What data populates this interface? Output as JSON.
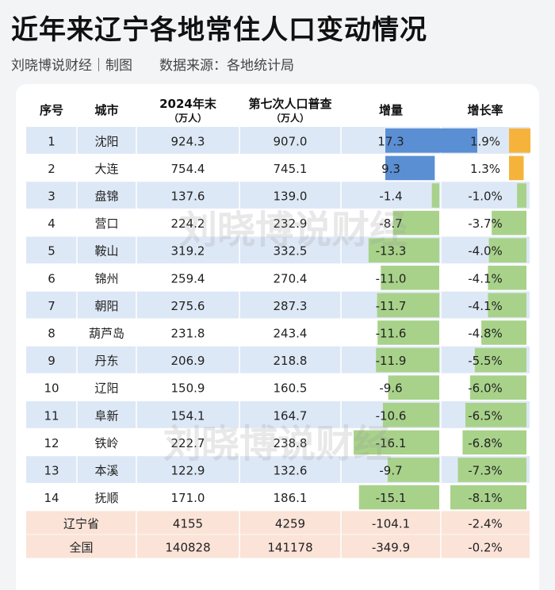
{
  "title": "近年来辽宁各地常住人口变动情况",
  "subtitle": "刘晓博说财经｜制图　　数据来源：各地统计局",
  "watermark": "刘晓博说财经",
  "colors": {
    "header_bg": "#ffffff",
    "row_blue": "#dde8f6",
    "row_white": "#ffffff",
    "row_pink": "#fbe3d8",
    "bar_positive": "#5b8fd4",
    "bar_negative": "#a8d28a",
    "rate_positive": "#f6b33b",
    "rate_negative": "#a8d28a"
  },
  "chart_data": {
    "type": "table",
    "columns": [
      {
        "key": "rank",
        "label": "序号",
        "sub": ""
      },
      {
        "key": "city",
        "label": "城市",
        "sub": ""
      },
      {
        "key": "pop2024",
        "label": "2024年末",
        "sub": "（万人）"
      },
      {
        "key": "census7",
        "label": "第七次人口普查",
        "sub": "（万人）"
      },
      {
        "key": "change",
        "label": "增量",
        "sub": ""
      },
      {
        "key": "rate",
        "label": "增长率",
        "sub": ""
      }
    ],
    "rows": [
      {
        "rank": "1",
        "city": "沈阳",
        "pop2024": "924.3",
        "census7": "907.0",
        "change": "17.3",
        "rate": "1.9%",
        "change_value": 17.3,
        "rate_value": 1.9
      },
      {
        "rank": "2",
        "city": "大连",
        "pop2024": "754.4",
        "census7": "745.1",
        "change": "9.3",
        "rate": "1.3%",
        "change_value": 9.3,
        "rate_value": 1.3
      },
      {
        "rank": "3",
        "city": "盘锦",
        "pop2024": "137.6",
        "census7": "139.0",
        "change": "-1.4",
        "rate": "-1.0%",
        "change_value": -1.4,
        "rate_value": -1.0
      },
      {
        "rank": "4",
        "city": "营口",
        "pop2024": "224.2",
        "census7": "232.9",
        "change": "-8.7",
        "rate": "-3.7%",
        "change_value": -8.7,
        "rate_value": -3.7
      },
      {
        "rank": "5",
        "city": "鞍山",
        "pop2024": "319.2",
        "census7": "332.5",
        "change": "-13.3",
        "rate": "-4.0%",
        "change_value": -13.3,
        "rate_value": -4.0
      },
      {
        "rank": "6",
        "city": "锦州",
        "pop2024": "259.4",
        "census7": "270.4",
        "change": "-11.0",
        "rate": "-4.1%",
        "change_value": -11.0,
        "rate_value": -4.1
      },
      {
        "rank": "7",
        "city": "朝阳",
        "pop2024": "275.6",
        "census7": "287.3",
        "change": "-11.7",
        "rate": "-4.1%",
        "change_value": -11.7,
        "rate_value": -4.1
      },
      {
        "rank": "8",
        "city": "葫芦岛",
        "pop2024": "231.8",
        "census7": "243.4",
        "change": "-11.6",
        "rate": "-4.8%",
        "change_value": -11.6,
        "rate_value": -4.8
      },
      {
        "rank": "9",
        "city": "丹东",
        "pop2024": "206.9",
        "census7": "218.8",
        "change": "-11.9",
        "rate": "-5.5%",
        "change_value": -11.9,
        "rate_value": -5.5
      },
      {
        "rank": "10",
        "city": "辽阳",
        "pop2024": "150.9",
        "census7": "160.5",
        "change": "-9.6",
        "rate": "-6.0%",
        "change_value": -9.6,
        "rate_value": -6.0
      },
      {
        "rank": "11",
        "city": "阜新",
        "pop2024": "154.1",
        "census7": "164.7",
        "change": "-10.6",
        "rate": "-6.5%",
        "change_value": -10.6,
        "rate_value": -6.5
      },
      {
        "rank": "12",
        "city": "铁岭",
        "pop2024": "222.7",
        "census7": "238.8",
        "change": "-16.1",
        "rate": "-6.8%",
        "change_value": -16.1,
        "rate_value": -6.8
      },
      {
        "rank": "13",
        "city": "本溪",
        "pop2024": "122.9",
        "census7": "132.6",
        "change": "-9.7",
        "rate": "-7.3%",
        "change_value": -9.7,
        "rate_value": -7.3
      },
      {
        "rank": "14",
        "city": "抚顺",
        "pop2024": "171.0",
        "census7": "186.1",
        "change": "-15.1",
        "rate": "-8.1%",
        "change_value": -15.1,
        "rate_value": -8.1
      }
    ],
    "totals": [
      {
        "label": "辽宁省",
        "pop2024": "4155",
        "census7": "4259",
        "change": "-104.1",
        "rate": "-2.4%"
      },
      {
        "label": "全国",
        "pop2024": "140828",
        "census7": "141178",
        "change": "-349.9",
        "rate": "-0.2%"
      }
    ],
    "change_max_abs": 17.3,
    "rate_max_abs": 8.1
  }
}
